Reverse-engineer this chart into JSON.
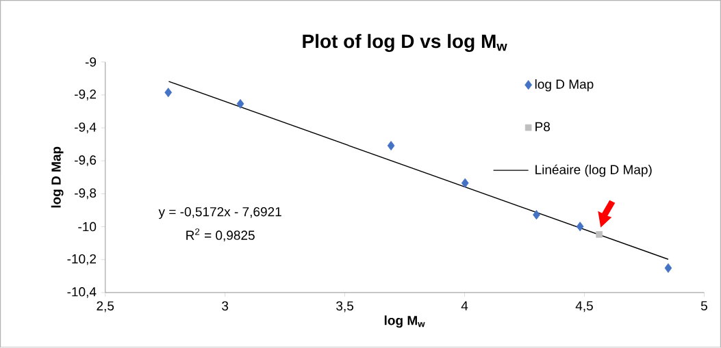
{
  "chart_data": {
    "type": "scatter",
    "title": "Plot of log D vs log M$_{w}$",
    "xlabel": "log M$_{w}$",
    "ylabel": "log D Map",
    "xlim": [
      2.5,
      5
    ],
    "ylim": [
      -10.4,
      -9
    ],
    "xticks": [
      {
        "value": 2.5,
        "label": "2,5"
      },
      3,
      {
        "value": 3.5,
        "label": "3,5"
      },
      4,
      {
        "value": 4.5,
        "label": "4,5"
      },
      5
    ],
    "yticks": [
      -9,
      {
        "value": -9.2,
        "label": "-9,2"
      },
      {
        "value": -9.4,
        "label": "-9,4"
      },
      {
        "value": -9.6,
        "label": "-9,6"
      },
      {
        "value": -9.8,
        "label": "-9,8"
      },
      -10,
      {
        "value": -10.2,
        "label": "-10,2"
      },
      {
        "value": -10.4,
        "label": "-10,4"
      }
    ],
    "grid": false,
    "legend": "top right",
    "series": [
      {
        "name": "log D Map",
        "marker": "diamond",
        "color": "#4472c4",
        "x": [
          2.763,
          3.064,
          3.693,
          4.002,
          4.3,
          4.482,
          4.85
        ],
        "values": [
          -9.185,
          -9.254,
          -9.508,
          -9.735,
          -9.928,
          -9.999,
          -10.251
        ]
      },
      {
        "name": "P8",
        "marker": "square",
        "color": "#bfbfbf",
        "x": [
          4.562
        ],
        "values": [
          -10.047
        ]
      },
      {
        "name": "Linéaire (log D Map)",
        "type": "line",
        "marker": "none",
        "color": "#000000",
        "x": [
          2.765,
          4.85
        ],
        "values": [
          -9.118,
          -10.198
        ]
      }
    ],
    "annotations": [
      "y = -0,5172x - 7,6921",
      "R$^{2}$ = 0,9825"
    ]
  }
}
